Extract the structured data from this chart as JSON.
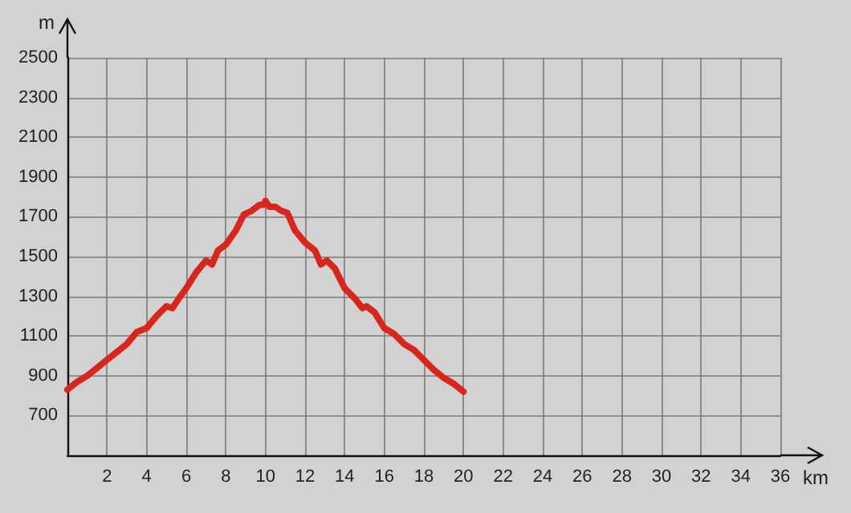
{
  "chart_data": {
    "type": "line",
    "xlabel": "km",
    "ylabel": "m",
    "x": [
      0,
      0.5,
      1,
      1.5,
      2,
      2.5,
      3,
      3.5,
      4,
      4.5,
      5,
      5.3,
      5.7,
      6,
      6.5,
      7,
      7.3,
      7.6,
      8,
      8.5,
      8.9,
      9.3,
      9.7,
      9.9,
      10,
      10.2,
      10.5,
      10.8,
      11.1,
      11.5,
      12,
      12.5,
      12.8,
      13.1,
      13.5,
      14,
      14.5,
      14.9,
      15.1,
      15.5,
      16,
      16.5,
      17,
      17.5,
      18,
      18.5,
      19,
      19.5,
      20
    ],
    "series": [
      {
        "color": "#d9261c",
        "values": [
          830,
          870,
          900,
          940,
          980,
          1020,
          1060,
          1120,
          1140,
          1200,
          1250,
          1240,
          1300,
          1340,
          1420,
          1480,
          1460,
          1530,
          1560,
          1630,
          1710,
          1730,
          1760,
          1760,
          1780,
          1750,
          1750,
          1730,
          1720,
          1630,
          1570,
          1530,
          1460,
          1480,
          1440,
          1340,
          1290,
          1240,
          1250,
          1220,
          1140,
          1110,
          1060,
          1030,
          980,
          930,
          890,
          860,
          820
        ]
      }
    ],
    "xlim": [
      0,
      36
    ],
    "xticks": [
      2,
      4,
      6,
      8,
      10,
      12,
      14,
      16,
      18,
      20,
      22,
      24,
      26,
      28,
      30,
      32,
      34,
      36
    ],
    "ylim": [
      500,
      2500
    ],
    "yticks": [
      700,
      900,
      1100,
      1300,
      1500,
      1700,
      1900,
      2100,
      2300,
      2500
    ],
    "grid": true,
    "marker": "none",
    "line_style": "solid"
  }
}
